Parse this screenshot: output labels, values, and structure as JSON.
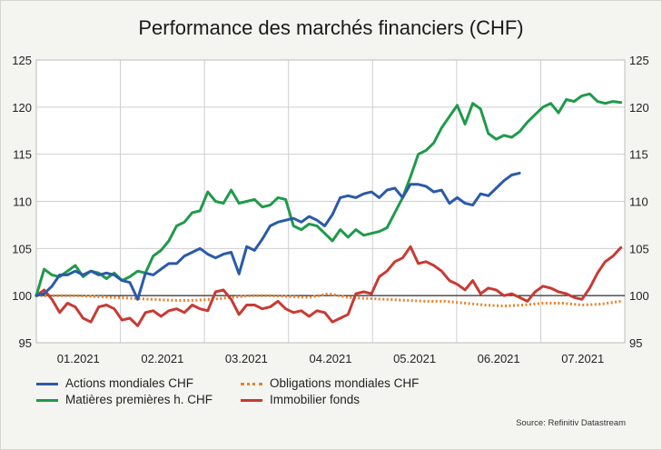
{
  "title": "Performance des marchés financiers (CHF)",
  "source": "Source: Refinitiv Datastream",
  "colors": {
    "actions": "#2a5aa8",
    "matieres": "#1f9a4a",
    "obligations": "#e8822a",
    "immobilier": "#c83a34",
    "axis": "#000000",
    "grid": "#cfcfcf"
  },
  "chart_data": {
    "type": "line",
    "title": "Performance des marchés financiers (CHF)",
    "x_tick_labels": [
      "01.2021",
      "02.2021",
      "03.2021",
      "04.2021",
      "05.2021",
      "06.2021",
      "07.2021"
    ],
    "y_ticks": [
      95,
      100,
      105,
      110,
      115,
      120,
      125
    ],
    "ylim": [
      95,
      125
    ],
    "xlim": [
      0,
      151
    ],
    "grid": true,
    "legend_position": "bottom",
    "series": [
      {
        "name": "Actions mondiales CHF",
        "style": "solid",
        "color": "#2a5aa8",
        "x": [
          0,
          2,
          4,
          6,
          8,
          10,
          12,
          14,
          16,
          18,
          20,
          22,
          24,
          26,
          28,
          30,
          32,
          34,
          36,
          38,
          40,
          42,
          44,
          46,
          48,
          50,
          52,
          54,
          56,
          58,
          60,
          62,
          64,
          66,
          68,
          70,
          72,
          74,
          76,
          78,
          80,
          82,
          84,
          86,
          88,
          90,
          92,
          94,
          96,
          98,
          100,
          102,
          104,
          106,
          108,
          110,
          112,
          114,
          116,
          118,
          120,
          122,
          124
        ],
        "y": [
          100,
          100.2,
          101,
          102.2,
          102.2,
          102.6,
          102.2,
          102.6,
          102.2,
          102.4,
          102.2,
          101.6,
          101.4,
          99.6,
          102.4,
          102.2,
          102.8,
          103.4,
          103.4,
          104.2,
          104.6,
          105,
          104.4,
          104,
          104.4,
          104.6,
          102.3,
          105.2,
          104.8,
          106,
          107.4,
          107.8,
          108,
          108.2,
          107.8,
          108.4,
          108,
          107.4,
          108.6,
          110.4,
          110.6,
          110.4,
          110.8,
          111,
          110.4,
          111.2,
          111.4,
          110.4,
          111.8,
          111.8,
          111.6,
          111,
          111.2,
          109.8,
          110.4,
          109.8,
          109.6,
          110.8,
          110.6,
          111.4,
          112.2,
          112.8,
          113
        ]
      },
      {
        "name": "Matières premières h. CHF",
        "style": "solid",
        "color": "#1f9a4a",
        "x": [
          0,
          2,
          4,
          6,
          8,
          10,
          12,
          14,
          16,
          18,
          20,
          22,
          24,
          26,
          28,
          30,
          32,
          34,
          36,
          38,
          40,
          42,
          44,
          46,
          48,
          50,
          52,
          54,
          56,
          58,
          60,
          62,
          64,
          66,
          68,
          70,
          72,
          74,
          76,
          78,
          80,
          82,
          84,
          86,
          88,
          90,
          92,
          94,
          96,
          98,
          100,
          102,
          104,
          106,
          108,
          110,
          112,
          114,
          116,
          118,
          120,
          122,
          124,
          126,
          128,
          130,
          132,
          134,
          136,
          138,
          140,
          142,
          144,
          146,
          148,
          150
        ],
        "y": [
          100,
          102.8,
          102.2,
          102,
          102.6,
          103.2,
          102,
          102.6,
          102.4,
          101.8,
          102.4,
          101.6,
          102,
          102.6,
          102.4,
          104.2,
          104.8,
          105.8,
          107.4,
          107.8,
          108.8,
          109,
          111,
          110,
          109.8,
          111.2,
          109.8,
          110,
          110.2,
          109.4,
          109.6,
          110.4,
          110.2,
          107.4,
          107,
          107.6,
          107.4,
          106.6,
          105.8,
          107,
          106.2,
          107,
          106.4,
          106.6,
          106.8,
          107.2,
          108.8,
          110.4,
          112.6,
          115,
          115.4,
          116.2,
          117.8,
          119,
          120.2,
          118.2,
          120.4,
          119.8,
          117.2,
          116.6,
          117,
          116.8,
          117.4,
          118.4,
          119.2,
          120,
          120.4,
          119.4,
          120.8,
          120.6,
          121.2,
          121.4,
          120.6,
          120.4,
          120.6,
          120.5
        ]
      },
      {
        "name": "Obligations mondiales CHF",
        "style": "dotted",
        "color": "#e8822a",
        "x": [
          0,
          5,
          10,
          15,
          20,
          25,
          30,
          35,
          40,
          45,
          50,
          55,
          60,
          65,
          70,
          75,
          80,
          85,
          90,
          95,
          100,
          105,
          110,
          115,
          120,
          125,
          130,
          135,
          140,
          145,
          150
        ],
        "y": [
          100,
          100,
          100,
          99.9,
          99.8,
          99.7,
          99.6,
          99.5,
          99.5,
          99.6,
          99.8,
          100,
          100,
          99.9,
          99.8,
          100.2,
          99.8,
          99.7,
          99.6,
          99.5,
          99.4,
          99.4,
          99.2,
          99,
          98.9,
          99,
          99.2,
          99.2,
          99,
          99.1,
          99.4
        ]
      },
      {
        "name": "Immobilier fonds",
        "style": "solid",
        "color": "#c83a34",
        "x": [
          0,
          2,
          4,
          6,
          8,
          10,
          12,
          14,
          16,
          18,
          20,
          22,
          24,
          26,
          28,
          30,
          32,
          34,
          36,
          38,
          40,
          42,
          44,
          46,
          48,
          50,
          52,
          54,
          56,
          58,
          60,
          62,
          64,
          66,
          68,
          70,
          72,
          74,
          76,
          78,
          80,
          82,
          84,
          86,
          88,
          90,
          92,
          94,
          96,
          98,
          100,
          102,
          104,
          106,
          108,
          110,
          112,
          114,
          116,
          118,
          120,
          122,
          124,
          126,
          128,
          130,
          132,
          134,
          136,
          138,
          140,
          142,
          144,
          146,
          148,
          150
        ],
        "y": [
          100,
          100.6,
          99.6,
          98.2,
          99.2,
          98.8,
          97.6,
          97.2,
          98.8,
          99,
          98.6,
          97.4,
          97.6,
          96.8,
          98.2,
          98.4,
          97.8,
          98.4,
          98.6,
          98.2,
          99,
          98.6,
          98.4,
          100.4,
          100.6,
          99.6,
          98,
          99,
          99,
          98.6,
          98.8,
          99.4,
          98.6,
          98.2,
          98.4,
          97.8,
          98.4,
          98.2,
          97.2,
          97.6,
          98,
          100.2,
          100.4,
          100.2,
          102,
          102.6,
          103.6,
          104,
          105.2,
          103.4,
          103.6,
          103.2,
          102.6,
          101.6,
          101.2,
          100.6,
          101.6,
          100.2,
          100.8,
          100.6,
          100,
          100.2,
          99.8,
          99.4,
          100.4,
          101,
          100.8,
          100.4,
          100.2,
          99.8,
          99.6,
          100.8,
          102.4,
          103.6,
          104.2,
          105.1
        ]
      }
    ]
  }
}
